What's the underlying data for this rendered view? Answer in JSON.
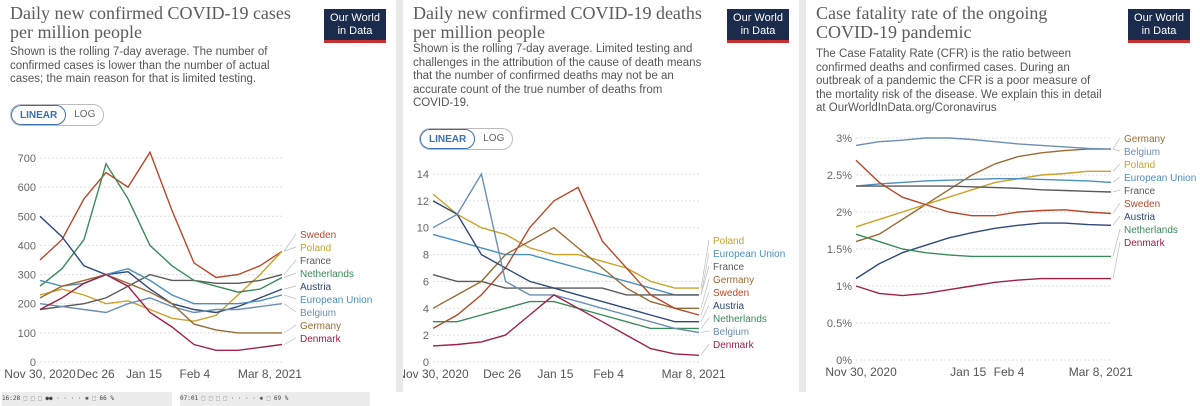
{
  "logo": {
    "line1": "Our World",
    "line2": "in Data"
  },
  "toggle": {
    "linear": "LINEAR",
    "log": "LOG"
  },
  "colors": {
    "highlight": "#f2d48a",
    "logo_bg": "#1a2b4c",
    "logo_bar": "#c8312e"
  },
  "status": {
    "left": "16:28 ⬚ ⬚ ⬚ ●● · · · · ✱ ⬚ 66 %",
    "right": "07:01 ⬚ ⬚ ⬚ ⬚ · · · · ✱ ⬚ 69 %"
  },
  "chart_data": [
    {
      "type": "line",
      "title": "Daily new confirmed COVID-19 cases per million people",
      "subtitle": "Shown is the rolling 7-day average. The number of confirmed cases is lower than the number of actual cases; the main reason for that is limited testing.",
      "x_ticks": [
        "Nov 30, 2020",
        "Dec 26",
        "Jan 15",
        "Feb 4",
        "Mar 8, 2021"
      ],
      "y_ticks": [
        "0",
        "100",
        "200",
        "300",
        "400",
        "500",
        "600",
        "700"
      ],
      "ylim": [
        0,
        700
      ],
      "legend": [
        "Sweden",
        "Poland",
        "France",
        "Netherlands",
        "Austria",
        "European Union",
        "Belgium",
        "Germany",
        "Denmark"
      ],
      "series": [
        {
          "name": "Sweden",
          "color": "#b6492a",
          "values": [
            350,
            420,
            560,
            650,
            600,
            720,
            520,
            340,
            290,
            300,
            330,
            380
          ]
        },
        {
          "name": "Poland",
          "color": "#c9a227",
          "values": [
            230,
            250,
            230,
            200,
            210,
            180,
            150,
            140,
            160,
            230,
            300,
            380
          ]
        },
        {
          "name": "France",
          "color": "#5a5a5a",
          "values": [
            180,
            190,
            200,
            220,
            260,
            300,
            280,
            280,
            270,
            270,
            280,
            300
          ]
        },
        {
          "name": "Netherlands",
          "color": "#3a8a5a",
          "values": [
            260,
            320,
            420,
            680,
            560,
            400,
            330,
            280,
            260,
            240,
            250,
            290
          ]
        },
        {
          "name": "Austria",
          "color": "#2d4a7a",
          "values": [
            500,
            430,
            330,
            300,
            310,
            250,
            200,
            180,
            170,
            190,
            220,
            250
          ]
        },
        {
          "name": "European Union",
          "color": "#4a8fbf",
          "values": [
            280,
            260,
            270,
            300,
            320,
            280,
            230,
            200,
            200,
            200,
            210,
            230
          ]
        },
        {
          "name": "Belgium",
          "color": "#6b8fb3",
          "values": [
            200,
            190,
            180,
            170,
            200,
            220,
            190,
            170,
            180,
            180,
            190,
            200
          ]
        },
        {
          "name": "Germany",
          "color": "#9a6b35",
          "values": [
            220,
            260,
            280,
            300,
            270,
            240,
            200,
            130,
            110,
            100,
            100,
            100
          ]
        },
        {
          "name": "Denmark",
          "color": "#a02048",
          "values": [
            180,
            220,
            270,
            300,
            260,
            170,
            120,
            60,
            40,
            40,
            50,
            60
          ]
        }
      ]
    },
    {
      "type": "line",
      "title": "Daily new confirmed COVID-19 deaths per million people",
      "subtitle": "Shown is the rolling 7-day average. Limited testing and challenges in the attribution of the cause of death means that the number of confirmed deaths may not be an accurate count of the true number of deaths from COVID-19.",
      "x_ticks": [
        "Nov 30, 2020",
        "Dec 26",
        "Jan 15",
        "Feb 4",
        "Mar 8, 2021"
      ],
      "y_ticks": [
        "0",
        "2",
        "4",
        "6",
        "8",
        "10",
        "12",
        "14"
      ],
      "ylim": [
        0,
        14
      ],
      "legend": [
        "Poland",
        "European Union",
        "France",
        "Germany",
        "Sweden",
        "Austria",
        "Netherlands",
        "Belgium",
        "Denmark"
      ],
      "series": [
        {
          "name": "Poland",
          "color": "#c9a227",
          "values": [
            12.5,
            11,
            10,
            9.5,
            8.5,
            8,
            8,
            7.5,
            7,
            6,
            5.5,
            5.5
          ]
        },
        {
          "name": "European Union",
          "color": "#4a8fbf",
          "values": [
            9.5,
            9,
            8.5,
            8,
            8,
            7.5,
            7,
            6.5,
            6,
            5.5,
            5,
            5
          ]
        },
        {
          "name": "France",
          "color": "#5a5a5a",
          "values": [
            6.5,
            6,
            6,
            5.5,
            5.5,
            5.5,
            5.5,
            5.5,
            5,
            5,
            5,
            5
          ]
        },
        {
          "name": "Germany",
          "color": "#9a6b35",
          "values": [
            4,
            5,
            6,
            8,
            9,
            10,
            8.5,
            7,
            5.5,
            4.5,
            4,
            4
          ]
        },
        {
          "name": "Sweden",
          "color": "#b6492a",
          "values": [
            2.5,
            3.5,
            5,
            7,
            10,
            12,
            13,
            9,
            7,
            5,
            4,
            3.5
          ]
        },
        {
          "name": "Austria",
          "color": "#2d4a7a",
          "values": [
            12,
            11,
            8,
            7,
            6,
            5.5,
            5,
            4.5,
            4,
            3.5,
            3,
            3
          ]
        },
        {
          "name": "Netherlands",
          "color": "#3a8a5a",
          "values": [
            3,
            3,
            3.5,
            4,
            4.5,
            4.5,
            4,
            3.5,
            3,
            2.5,
            2.5,
            2.5
          ]
        },
        {
          "name": "Belgium",
          "color": "#6b8fb3",
          "values": [
            10,
            11,
            14,
            6,
            5,
            5,
            4.5,
            4,
            3.5,
            3,
            2.5,
            2.2
          ]
        },
        {
          "name": "Denmark",
          "color": "#a02048",
          "values": [
            1.2,
            1.3,
            1.5,
            2,
            3.5,
            5,
            4,
            3,
            2,
            1,
            0.6,
            0.5
          ]
        }
      ]
    },
    {
      "type": "line",
      "title": "Case fatality rate of the ongoing COVID-19 pandemic",
      "subtitle": "The Case Fatality Rate (CFR) is the ratio between confirmed deaths and confirmed cases. During an outbreak of a pandemic the CFR is a poor measure of the mortality risk of the disease. We explain this in detail at OurWorldInData.org/Coronavirus",
      "x_ticks": [
        "Nov 30, 2020",
        "Jan 15",
        "Feb 4",
        "Mar 8, 2021"
      ],
      "y_ticks": [
        "0%",
        "0.5%",
        "1%",
        "1.5%",
        "2%",
        "2.5%",
        "3%"
      ],
      "ylim": [
        0,
        3
      ],
      "legend": [
        "Germany",
        "Belgium",
        "Poland",
        "European Union",
        "France",
        "Sweden",
        "Austria",
        "Netherlands",
        "Denmark"
      ],
      "series": [
        {
          "name": "Germany",
          "color": "#9a6b35",
          "values": [
            1.6,
            1.7,
            1.9,
            2.1,
            2.3,
            2.5,
            2.65,
            2.75,
            2.8,
            2.83,
            2.85,
            2.85
          ]
        },
        {
          "name": "Belgium",
          "color": "#6b8fb3",
          "values": [
            2.9,
            2.95,
            2.97,
            3.0,
            3.0,
            2.98,
            2.95,
            2.92,
            2.9,
            2.88,
            2.86,
            2.85
          ]
        },
        {
          "name": "Poland",
          "color": "#c9a227",
          "values": [
            1.8,
            1.9,
            2.0,
            2.1,
            2.2,
            2.3,
            2.4,
            2.45,
            2.5,
            2.52,
            2.55,
            2.55
          ]
        },
        {
          "name": "European Union",
          "color": "#4a8fbf",
          "values": [
            2.35,
            2.38,
            2.4,
            2.42,
            2.43,
            2.44,
            2.45,
            2.45,
            2.44,
            2.43,
            2.42,
            2.4
          ]
        },
        {
          "name": "France",
          "color": "#5a5a5a",
          "values": [
            2.35,
            2.35,
            2.35,
            2.35,
            2.35,
            2.34,
            2.33,
            2.32,
            2.3,
            2.29,
            2.28,
            2.27
          ]
        },
        {
          "name": "Sweden",
          "color": "#b6492a",
          "values": [
            2.7,
            2.4,
            2.2,
            2.1,
            2.0,
            1.95,
            1.95,
            2.0,
            2.02,
            2.03,
            2.0,
            1.98
          ]
        },
        {
          "name": "Austria",
          "color": "#2d4a7a",
          "values": [
            1.1,
            1.3,
            1.45,
            1.55,
            1.65,
            1.72,
            1.78,
            1.82,
            1.85,
            1.85,
            1.83,
            1.82
          ]
        },
        {
          "name": "Netherlands",
          "color": "#3a8a5a",
          "values": [
            1.7,
            1.6,
            1.5,
            1.45,
            1.42,
            1.4,
            1.4,
            1.4,
            1.4,
            1.4,
            1.4,
            1.4
          ]
        },
        {
          "name": "Denmark",
          "color": "#a02048",
          "values": [
            1.0,
            0.9,
            0.87,
            0.9,
            0.95,
            1.0,
            1.05,
            1.08,
            1.1,
            1.1,
            1.1,
            1.1
          ]
        }
      ]
    }
  ]
}
